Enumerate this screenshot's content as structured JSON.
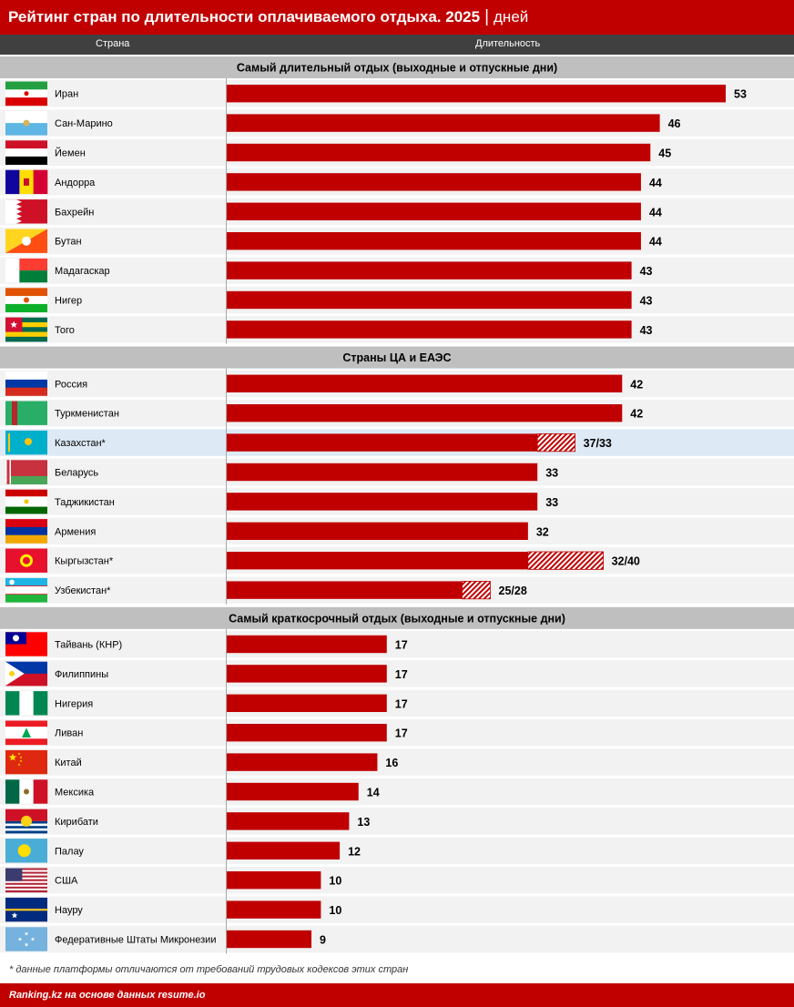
{
  "header": {
    "title": "Рейтинг стран по длительности оплачиваемого отдыха. 2025",
    "separator": "|",
    "unit": "дней",
    "col_country": "Страна",
    "col_duration": "Длительность"
  },
  "footnote": "* данные платформы отличаются от требований трудовых кодексов этих стран",
  "source": "Ranking.kz на основе данных resume.io",
  "colors": {
    "bar": "#c00000",
    "hatch": "#c00000",
    "section_bg": "#bfbfbf",
    "row_bg": "#f2f2f2",
    "highlight_bg": "#dde9f5",
    "title_bg": "#c00000",
    "header_bg": "#404040"
  },
  "chart_data": {
    "type": "bar",
    "orientation": "horizontal",
    "xlim": [
      0,
      53
    ],
    "sections": [
      {
        "title": "Самый длительный отдых (выходные и отпускные дни)",
        "rows": [
          {
            "country": "Иран",
            "flag": "flag-iran",
            "value": 53,
            "label": "53"
          },
          {
            "country": "Сан-Марино",
            "flag": "flag-san-marino",
            "value": 46,
            "label": "46"
          },
          {
            "country": "Йемен",
            "flag": "flag-yemen",
            "value": 45,
            "label": "45"
          },
          {
            "country": "Андорра",
            "flag": "flag-andorra",
            "value": 44,
            "label": "44"
          },
          {
            "country": "Бахрейн",
            "flag": "flag-bahrain",
            "value": 44,
            "label": "44"
          },
          {
            "country": "Бутан",
            "flag": "flag-bhutan",
            "value": 44,
            "label": "44"
          },
          {
            "country": "Мадагаскар",
            "flag": "flag-madagascar",
            "value": 43,
            "label": "43"
          },
          {
            "country": "Нигер",
            "flag": "flag-niger",
            "value": 43,
            "label": "43"
          },
          {
            "country": "Того",
            "flag": "flag-togo",
            "value": 43,
            "label": "43"
          }
        ]
      },
      {
        "title": "Страны ЦА и ЕАЭС",
        "rows": [
          {
            "country": "Россия",
            "flag": "flag-russia",
            "value": 42,
            "label": "42"
          },
          {
            "country": "Туркменистан",
            "flag": "flag-turkmenistan",
            "value": 42,
            "label": "42"
          },
          {
            "country": "Казахстан*",
            "flag": "flag-kazakhstan",
            "value": 33,
            "alt_value": 37,
            "label": "37/33",
            "highlight": true
          },
          {
            "country": "Беларусь",
            "flag": "flag-belarus",
            "value": 33,
            "label": "33"
          },
          {
            "country": "Таджикистан",
            "flag": "flag-tajikistan",
            "value": 33,
            "label": "33"
          },
          {
            "country": "Армения",
            "flag": "flag-armenia",
            "value": 32,
            "label": "32"
          },
          {
            "country": "Кыргызстан*",
            "flag": "flag-kyrgyzstan",
            "value": 32,
            "alt_value": 40,
            "label": "32/40"
          },
          {
            "country": "Узбекистан*",
            "flag": "flag-uzbekistan",
            "value": 25,
            "alt_value": 28,
            "label": "25/28"
          }
        ]
      },
      {
        "title": "Самый краткосрочный отдых (выходные и отпускные дни)",
        "rows": [
          {
            "country": "Тайвань (КНР)",
            "flag": "flag-taiwan",
            "value": 17,
            "label": "17"
          },
          {
            "country": "Филиппины",
            "flag": "flag-philippines",
            "value": 17,
            "label": "17"
          },
          {
            "country": "Нигерия",
            "flag": "flag-nigeria",
            "value": 17,
            "label": "17"
          },
          {
            "country": "Ливан",
            "flag": "flag-lebanon",
            "value": 17,
            "label": "17"
          },
          {
            "country": "Китай",
            "flag": "flag-china",
            "value": 16,
            "label": "16"
          },
          {
            "country": "Мексика",
            "flag": "flag-mexico",
            "value": 14,
            "label": "14"
          },
          {
            "country": "Кирибати",
            "flag": "flag-kiribati",
            "value": 13,
            "label": "13"
          },
          {
            "country": "Палау",
            "flag": "flag-palau",
            "value": 12,
            "label": "12"
          },
          {
            "country": "США",
            "flag": "flag-usa",
            "value": 10,
            "label": "10"
          },
          {
            "country": "Науру",
            "flag": "flag-nauru",
            "value": 10,
            "label": "10"
          },
          {
            "country": "Федеративные Штаты Микронезии",
            "flag": "flag-micronesia",
            "value": 9,
            "label": "9"
          }
        ]
      }
    ]
  }
}
